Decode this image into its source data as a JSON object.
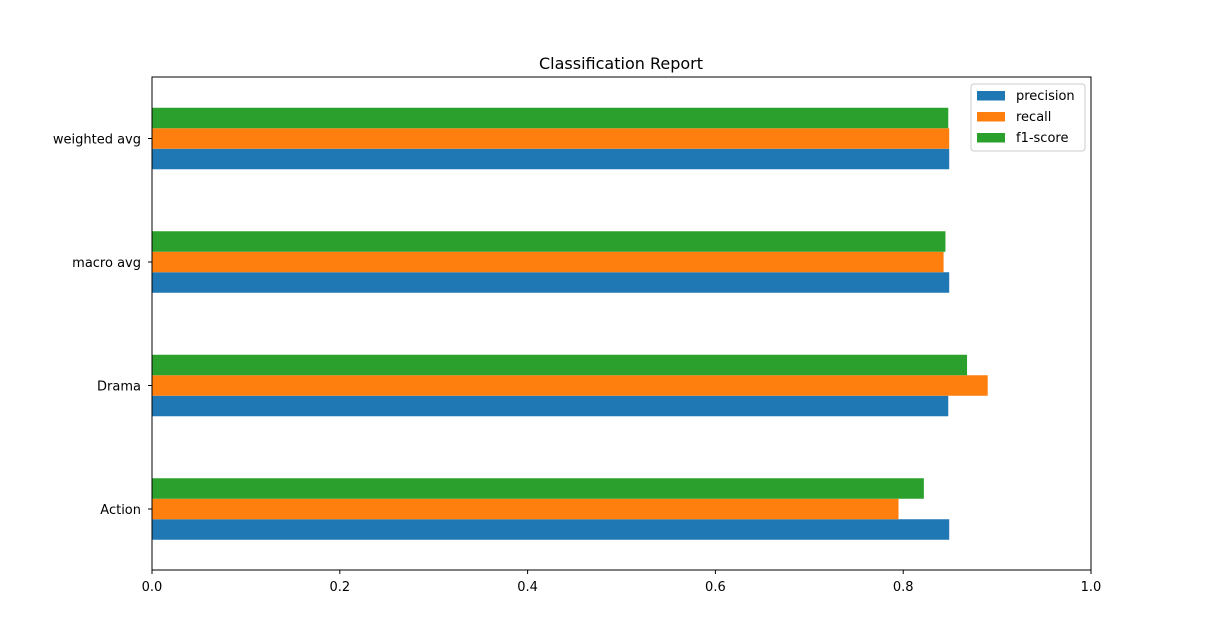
{
  "chart_data": {
    "type": "bar",
    "orientation": "horizontal",
    "title": "Classification Report",
    "xlabel": "",
    "ylabel": "",
    "categories": [
      "Action",
      "Drama",
      "macro avg",
      "weighted avg"
    ],
    "series": [
      {
        "name": "precision",
        "color": "#1f77b4",
        "values": [
          0.849,
          0.848,
          0.849,
          0.849
        ]
      },
      {
        "name": "recall",
        "color": "#ff7f0e",
        "values": [
          0.795,
          0.89,
          0.843,
          0.849
        ]
      },
      {
        "name": "f1-score",
        "color": "#2ca02c",
        "values": [
          0.822,
          0.868,
          0.845,
          0.848
        ]
      }
    ],
    "xlim": [
      0.0,
      1.0
    ],
    "xticks": [
      "0.0",
      "0.2",
      "0.4",
      "0.6",
      "0.8",
      "1.0"
    ],
    "grid": false,
    "legend_position": "top-right"
  }
}
